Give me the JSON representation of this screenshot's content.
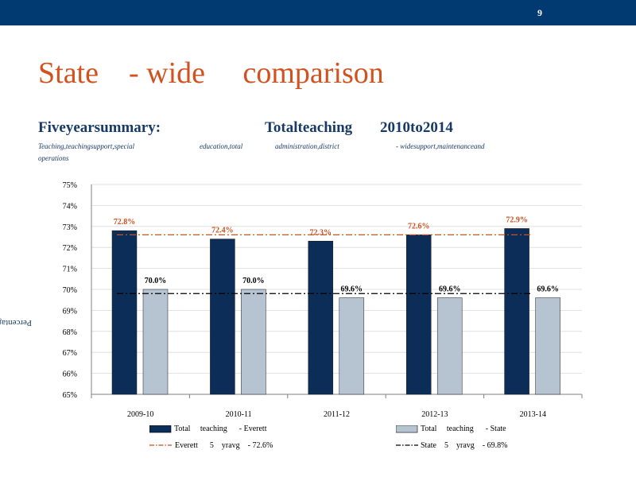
{
  "header": {
    "page_number": "9"
  },
  "title": "State    - wide     comparison",
  "subtitle": {
    "left": "Fiveyearsummary:",
    "middle": "Totalteaching",
    "right": "2010to2014"
  },
  "note": {
    "part1": "Teaching,teachingsupport,special",
    "part2": "education,total",
    "part3": "administration,district",
    "part4": "- widesupport,maintenanceand",
    "part5": "operations"
  },
  "colors": {
    "everett": "#0b2d57",
    "state": "#b6c4d2",
    "everett_avg": "#c8521f",
    "state_avg": "#000000",
    "title": "#d2521f"
  },
  "chart_data": {
    "type": "bar",
    "categories": [
      "2009-10",
      "2010-11",
      "2011-12",
      "2012-13",
      "2013-14"
    ],
    "series": [
      {
        "name": "Total teaching - Everett",
        "values": [
          72.8,
          72.4,
          72.3,
          72.6,
          72.9
        ],
        "labels": [
          "72.8%",
          "72.4%",
          "72.3%",
          "72.6%",
          "72.9%"
        ]
      },
      {
        "name": "Total teaching - State",
        "values": [
          70.0,
          70.0,
          69.6,
          69.6,
          69.6
        ],
        "labels": [
          "70.0%",
          "70.0%",
          "69.6%",
          "69.6%",
          "69.6%"
        ]
      }
    ],
    "reference_lines": [
      {
        "name": "Everett 5 yr avg - 72.6%",
        "value": 72.6,
        "style": "dash-dot"
      },
      {
        "name": "State 5 yr avg - 69.8%",
        "value": 69.8,
        "style": "dash-dot"
      }
    ],
    "ylim": [
      65,
      75
    ],
    "yticks": [
      "65%",
      "66%",
      "67%",
      "68%",
      "69%",
      "70%",
      "71%",
      "72%",
      "73%",
      "74%",
      "75%"
    ],
    "ylabel": "Percentage",
    "grid": true,
    "legend_position": "bottom"
  },
  "legend": {
    "everett_bar": "Total     teaching      - Everett",
    "state_bar": "Total     teaching      - State",
    "everett_avg": "Everett      5    yravg    - 72.6%",
    "state_avg": "State    5    yravg    - 69.8%"
  }
}
